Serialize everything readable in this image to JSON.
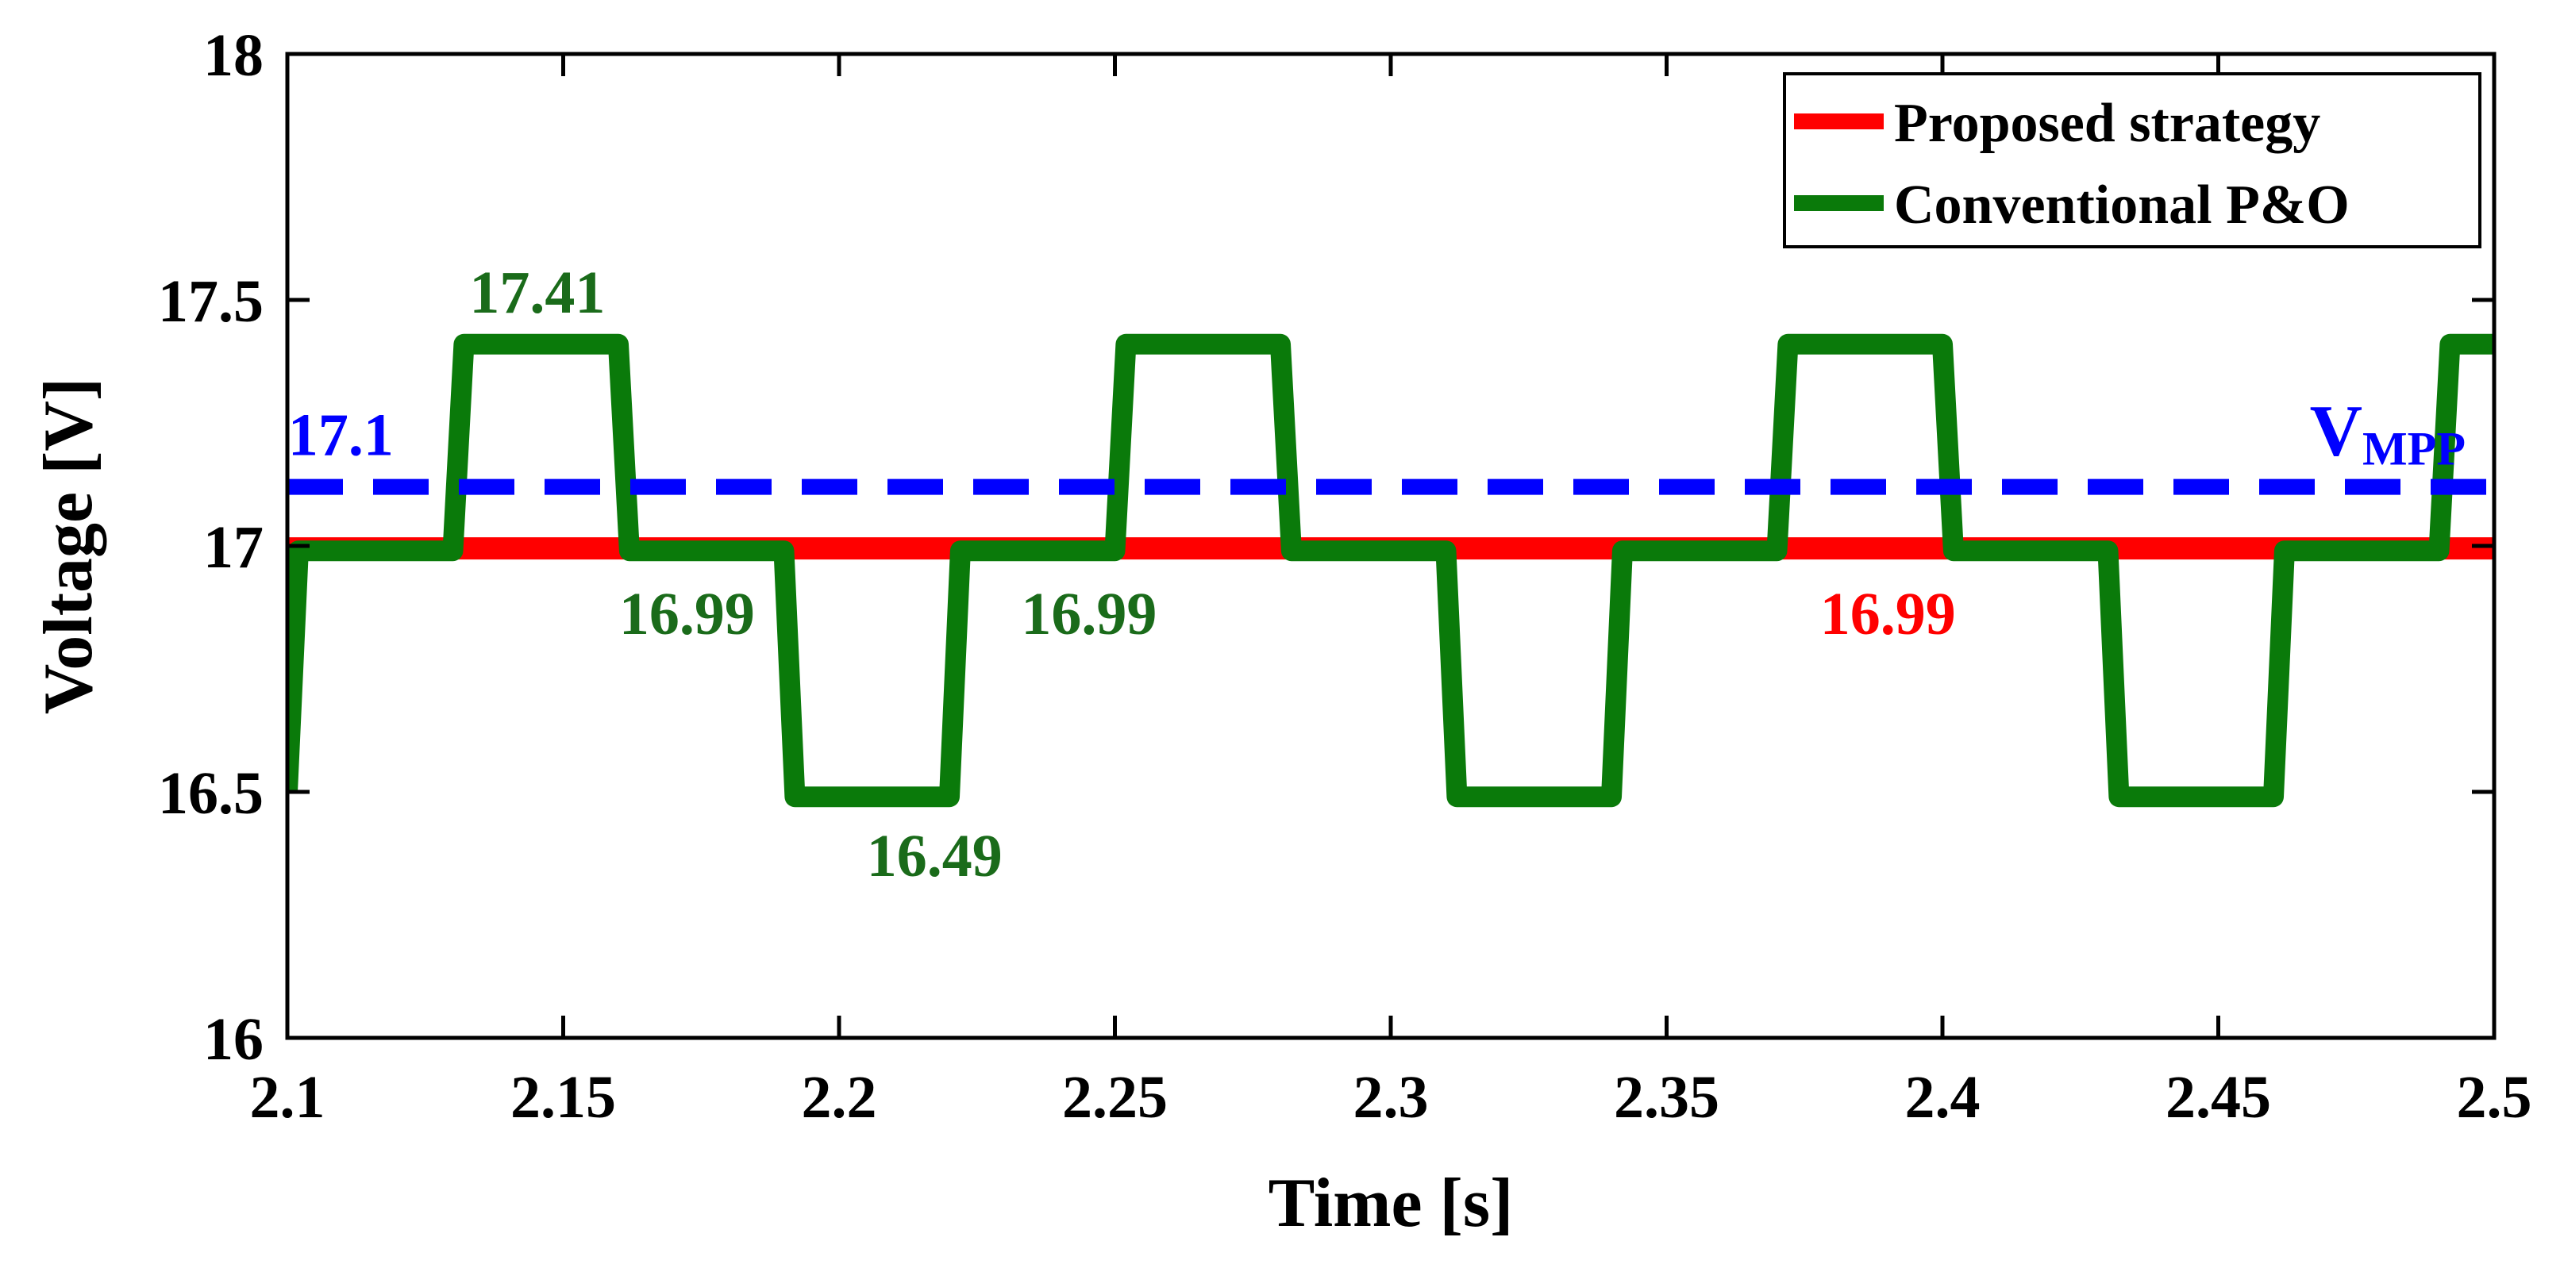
{
  "chart_data": {
    "type": "line",
    "title": "",
    "xlabel": "Time [s]",
    "ylabel": "Voltage [V]",
    "xlim": [
      2.1,
      2.5
    ],
    "ylim": [
      16,
      18
    ],
    "xticks": [
      2.1,
      2.15,
      2.2,
      2.25,
      2.3,
      2.35,
      2.4,
      2.45,
      2.5
    ],
    "xtick_labels": [
      "2.1",
      "2.15",
      "2.2",
      "2.25",
      "2.3",
      "2.35",
      "2.4",
      "2.45",
      "2.5"
    ],
    "yticks": [
      16,
      16.5,
      17,
      17.5,
      18
    ],
    "ytick_labels": [
      "16",
      "16.5",
      "17",
      "17.5",
      "18"
    ],
    "grid": false,
    "legend_position": "top-right",
    "series": [
      {
        "name": "Proposed strategy",
        "color": "#ff0000",
        "style": "solid",
        "x": [
          2.1,
          2.5
        ],
        "y": [
          16.995,
          16.995
        ]
      },
      {
        "name": "Conventional P&O",
        "color": "#0a7a0a",
        "style": "solid",
        "x": [
          2.1,
          2.102,
          2.13,
          2.132,
          2.16,
          2.162,
          2.19,
          2.192,
          2.22,
          2.222,
          2.25,
          2.252,
          2.28,
          2.282,
          2.31,
          2.312,
          2.34,
          2.342,
          2.37,
          2.372,
          2.4,
          2.402,
          2.43,
          2.432,
          2.46,
          2.462,
          2.49,
          2.492,
          2.5
        ],
        "y": [
          16.5,
          16.99,
          16.99,
          17.41,
          17.41,
          16.99,
          16.99,
          16.49,
          16.49,
          16.99,
          16.99,
          17.41,
          17.41,
          16.99,
          16.99,
          16.49,
          16.49,
          16.99,
          16.99,
          17.41,
          17.41,
          16.99,
          16.99,
          16.49,
          16.49,
          16.99,
          16.99,
          17.41,
          17.41
        ]
      },
      {
        "name": "V_MPP",
        "color": "#0000ff",
        "style": "dashed",
        "x": [
          2.1,
          2.5
        ],
        "y": [
          17.12,
          17.12
        ]
      }
    ],
    "annotations": [
      {
        "text": "17.41",
        "x": 2.133,
        "y": 17.41,
        "color": "#1a6b1a"
      },
      {
        "text": "17.1",
        "x": 2.103,
        "y": 17.12,
        "color": "#0000ff"
      },
      {
        "text": "16.99",
        "x": 2.163,
        "y": 16.99,
        "color": "#1a6b1a"
      },
      {
        "text": "16.99",
        "x": 2.233,
        "y": 16.99,
        "color": "#1a6b1a"
      },
      {
        "text": "16.99",
        "x": 2.385,
        "y": 16.99,
        "color": "#ff0000"
      },
      {
        "text": "16.49",
        "x": 2.205,
        "y": 16.49,
        "color": "#1a6b1a"
      }
    ],
    "vmpp_label": {
      "main": "V",
      "sub": "MPP",
      "x": 2.468,
      "y": 17.12,
      "color": "#0000ff"
    }
  }
}
